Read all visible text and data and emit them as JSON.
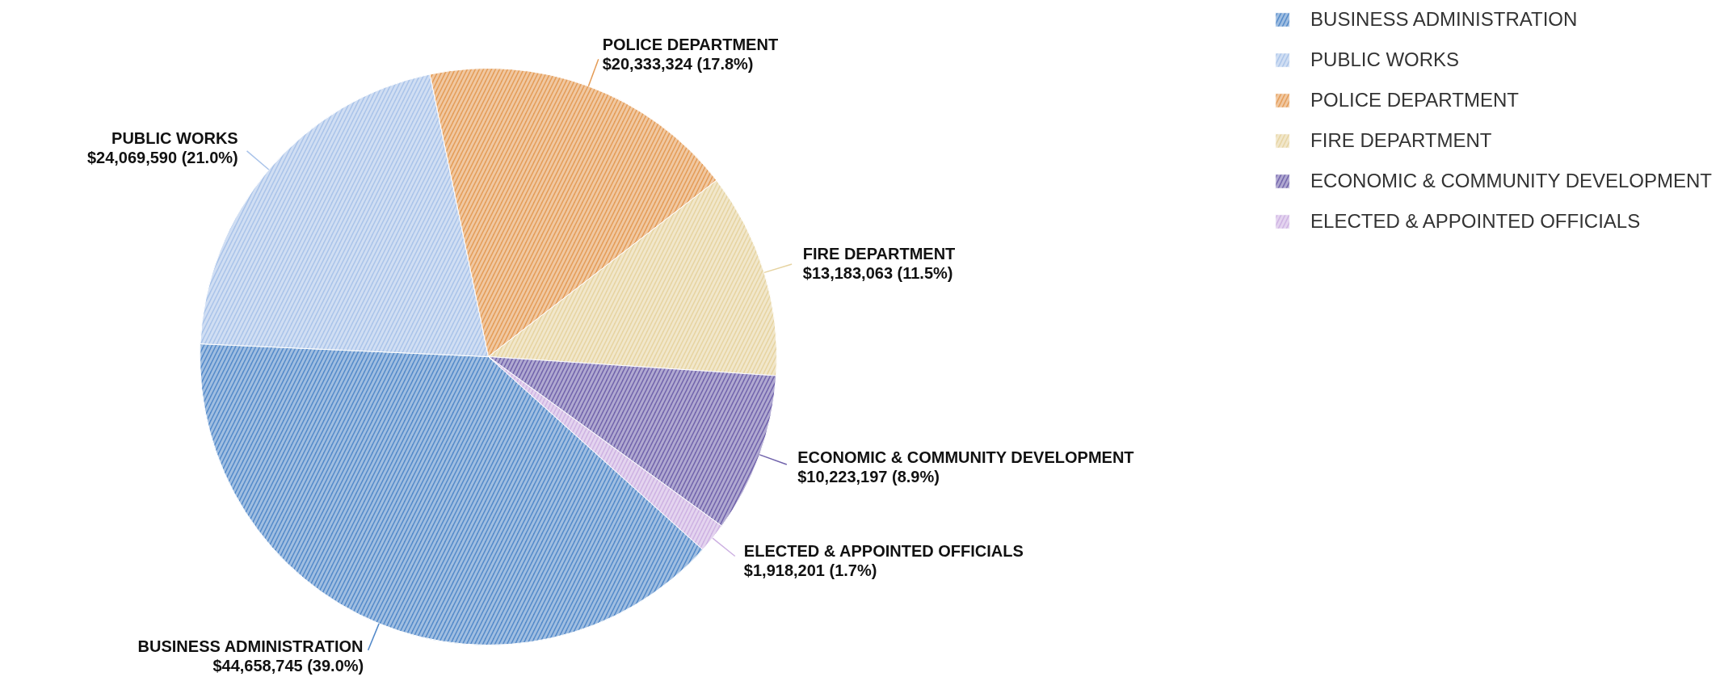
{
  "chart_data": {
    "type": "pie",
    "categories": [
      "BUSINESS ADMINISTRATION",
      "PUBLIC WORKS",
      "POLICE DEPARTMENT",
      "FIRE DEPARTMENT",
      "ECONOMIC & COMMUNITY DEVELOPMENT",
      "ELECTED & APPOINTED OFFICIALS"
    ],
    "values": [
      44658745,
      24069590,
      20333324,
      13183063,
      10223197,
      1918201
    ],
    "value_labels": [
      "$44,658,745 (39.0%)",
      "$24,069,590 (21.0%)",
      "$20,333,324 (17.8%)",
      "$13,183,063 (11.5%)",
      "$10,223,197 (8.9%)",
      "$1,918,201 (1.7%)"
    ],
    "colors": [
      "#5289c9",
      "#a9c3e9",
      "#e49b55",
      "#e6d3a0",
      "#7062ab",
      "#cdb1e2"
    ],
    "legend": "top right"
  }
}
